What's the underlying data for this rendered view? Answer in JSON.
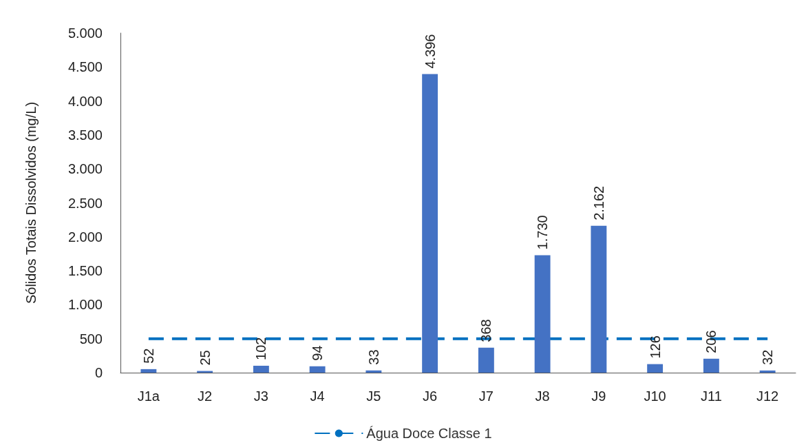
{
  "chart_data": {
    "type": "bar",
    "ylabel": "Sólidos Totais Dissolvidos (mg/L)",
    "categories": [
      "J1a",
      "J2",
      "J3",
      "J4",
      "J5",
      "J6",
      "J7",
      "J8",
      "J9",
      "J10",
      "J11",
      "J12"
    ],
    "values": [
      52,
      25,
      102,
      94,
      33,
      4396,
      368,
      1730,
      2162,
      126,
      206,
      32
    ],
    "value_labels": [
      "52",
      "25",
      "102",
      "94",
      "33",
      "4.396",
      "368",
      "1.730",
      "2.162",
      "126",
      "206",
      "32"
    ],
    "color": "#4472c4",
    "ylim": [
      0,
      5000
    ],
    "yticks": [
      0,
      500,
      {
        "value": 1000,
        "label": "1.000"
      },
      {
        "value": 1500,
        "label": "1.500"
      },
      {
        "value": 2000,
        "label": "2.000"
      },
      {
        "value": 2500,
        "label": "2.500"
      },
      {
        "value": 3000,
        "label": "3.000"
      },
      {
        "value": 3500,
        "label": "3.500"
      },
      {
        "value": 4000,
        "label": "4.000"
      },
      {
        "value": 4500,
        "label": "4.500"
      },
      {
        "value": 5000,
        "label": "5.000"
      }
    ],
    "ref_lines": [
      {
        "axis": "y",
        "value": 500,
        "label": "Água Doce Classe 1",
        "color": "#0070c0",
        "line_style": "dashed"
      }
    ],
    "grid": false,
    "legend": "bottom"
  }
}
